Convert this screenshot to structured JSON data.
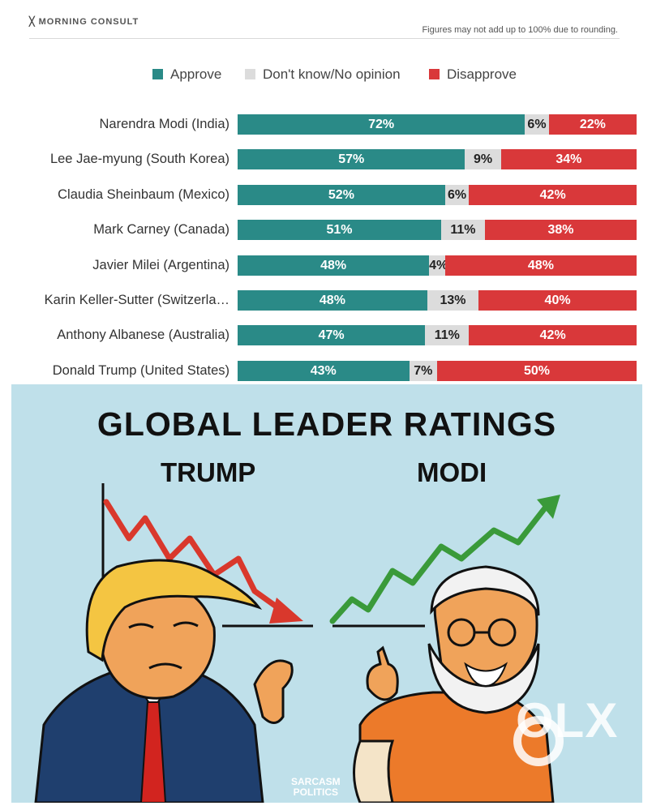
{
  "header": {
    "brand": "MORNING CONSULT",
    "note": "Figures may not add up to 100% due to rounding."
  },
  "colors": {
    "approve": "#2a8a87",
    "dont_know": "#dcdcdc",
    "disapprove": "#d9383a"
  },
  "chart_data": {
    "type": "bar",
    "orientation": "horizontal",
    "stacked": true,
    "legend": [
      "Approve",
      "Don't know/No opinion",
      "Disapprove"
    ],
    "categories": [
      "Narendra Modi (India)",
      "Lee Jae-myung (South Korea)",
      "Claudia Sheinbaum (Mexico)",
      "Mark Carney (Canada)",
      "Javier Milei (Argentina)",
      "Karin Keller-Sutter (Switzerla…",
      "Anthony Albanese (Australia)",
      "Donald Trump (United States)"
    ],
    "series": [
      {
        "name": "Approve",
        "values": [
          72,
          57,
          52,
          51,
          48,
          48,
          47,
          43
        ]
      },
      {
        "name": "Don't know/No opinion",
        "values": [
          6,
          9,
          6,
          11,
          4,
          13,
          11,
          7
        ]
      },
      {
        "name": "Disapprove",
        "values": [
          22,
          34,
          42,
          38,
          48,
          40,
          42,
          50
        ]
      }
    ],
    "value_suffix": "%"
  },
  "poster": {
    "title": "GLOBAL LEADER RATINGS",
    "left_label": "TRUMP",
    "right_label": "MODI",
    "credit_line1": "SARCASM",
    "credit_line2": "POLITICS",
    "watermark": "OLX"
  }
}
